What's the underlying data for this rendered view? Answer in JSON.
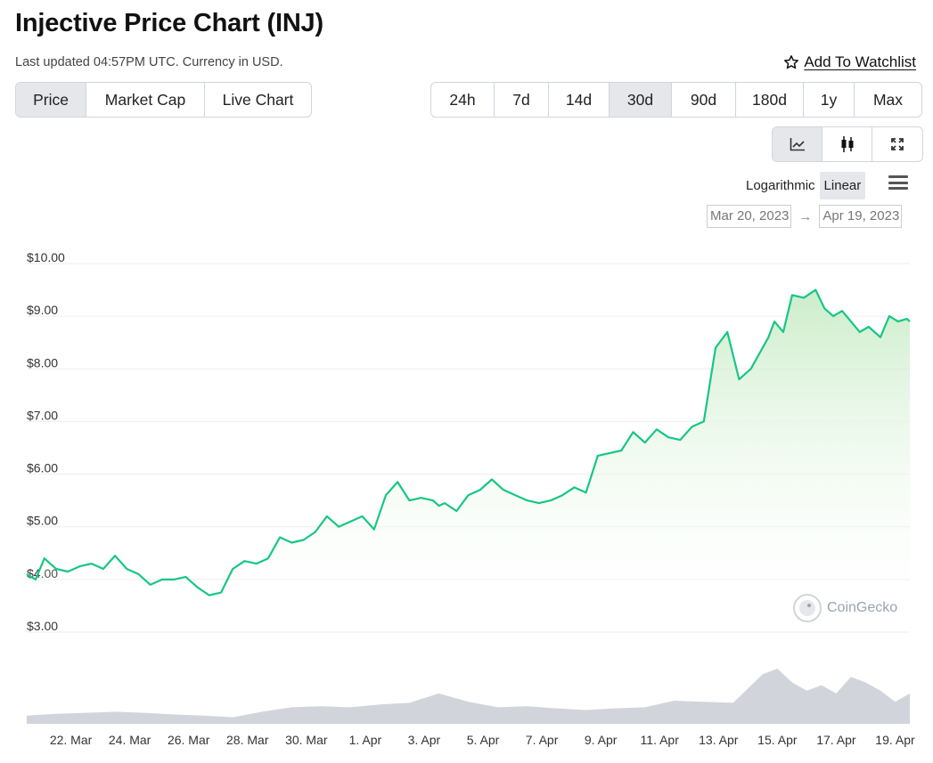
{
  "header": {
    "title": "Injective Price Chart (INJ)",
    "subtitle": "Last updated 04:57PM UTC. Currency in USD.",
    "watchlist_label": "Add To Watchlist"
  },
  "tabs": [
    {
      "label": "Price",
      "active": true
    },
    {
      "label": "Market Cap",
      "active": false
    },
    {
      "label": "Live Chart",
      "active": false
    }
  ],
  "ranges": [
    {
      "label": "24h",
      "active": false
    },
    {
      "label": "7d",
      "active": false
    },
    {
      "label": "14d",
      "active": false
    },
    {
      "label": "30d",
      "active": true
    },
    {
      "label": "90d",
      "active": false
    },
    {
      "label": "180d",
      "active": false
    },
    {
      "label": "1y",
      "active": false
    },
    {
      "label": "Max",
      "active": false
    }
  ],
  "chart_tools": [
    {
      "icon": "line-chart-icon",
      "active": true
    },
    {
      "icon": "candlestick-icon",
      "active": false
    },
    {
      "icon": "fullscreen-icon",
      "active": false
    }
  ],
  "scale": {
    "logarithmic_label": "Logarithmic",
    "linear_label": "Linear",
    "active": "Linear"
  },
  "date_range": {
    "from": "Mar 20, 2023",
    "to": "Apr 19, 2023",
    "arrow": "→"
  },
  "brand": {
    "name": "CoinGecko"
  },
  "colors": {
    "line": "#16c784",
    "area_top": "#c9ecc7",
    "volume": "#d1d5db"
  },
  "chart_data": {
    "type": "area",
    "y_ticks": [
      "$3.00",
      "$4.00",
      "$5.00",
      "$6.00",
      "$7.00",
      "$8.00",
      "$9.00",
      "$10.00"
    ],
    "ylim": [
      3,
      10
    ],
    "x_ticks": [
      "22. Mar",
      "24. Mar",
      "26. Mar",
      "28. Mar",
      "30. Mar",
      "1. Apr",
      "3. Apr",
      "5. Apr",
      "7. Apr",
      "9. Apr",
      "11. Apr",
      "13. Apr",
      "15. Apr",
      "17. Apr",
      "19. Apr"
    ],
    "xlim": [
      0,
      30
    ],
    "x_ticks_pos": [
      1.5,
      3.5,
      5.5,
      7.5,
      9.5,
      11.5,
      13.5,
      15.5,
      17.5,
      19.5,
      21.5,
      23.5,
      25.5,
      27.5,
      29.5
    ],
    "series": [
      {
        "x": [
          0,
          0.3,
          0.6,
          1.0,
          1.4,
          1.8,
          2.2,
          2.6,
          3.0,
          3.4,
          3.8,
          4.2,
          4.6,
          5.0,
          5.4,
          5.8,
          6.2,
          6.6,
          7.0,
          7.4,
          7.8,
          8.2,
          8.6,
          9.0,
          9.4,
          9.8,
          10.2,
          10.6,
          11.0,
          11.4,
          11.8,
          12.2,
          12.6,
          13.0,
          13.4,
          13.8,
          14.0,
          14.2,
          14.6,
          15.0,
          15.4,
          15.8,
          16.2,
          16.6,
          17.0,
          17.4,
          17.8,
          18.2,
          18.6,
          19.0,
          19.4,
          19.8,
          20.2,
          20.6,
          21.0,
          21.4,
          21.8,
          22.2,
          22.6,
          23.0,
          23.4,
          23.8,
          24.2,
          24.6,
          24.9,
          25.2,
          25.4,
          25.7,
          26.0,
          26.4,
          26.8,
          27.1,
          27.4,
          27.7,
          28.0,
          28.3,
          28.6,
          29.0,
          29.3,
          29.6,
          29.9,
          30.0
        ],
        "y": [
          4.1,
          4.0,
          4.4,
          4.2,
          4.15,
          4.25,
          4.3,
          4.2,
          4.45,
          4.2,
          4.1,
          3.9,
          4.0,
          4.0,
          4.05,
          3.85,
          3.7,
          3.75,
          4.2,
          4.35,
          4.3,
          4.4,
          4.8,
          4.7,
          4.75,
          4.9,
          5.2,
          5.0,
          5.1,
          5.2,
          4.95,
          5.6,
          5.85,
          5.5,
          5.55,
          5.5,
          5.4,
          5.45,
          5.3,
          5.6,
          5.7,
          5.9,
          5.7,
          5.6,
          5.5,
          5.45,
          5.5,
          5.6,
          5.75,
          5.65,
          6.35,
          6.4,
          6.45,
          6.8,
          6.6,
          6.85,
          6.7,
          6.65,
          6.9,
          7.0,
          8.4,
          8.7,
          7.8,
          8.0,
          8.3,
          8.6,
          8.9,
          8.7,
          9.4,
          9.35,
          9.5,
          9.15,
          9.0,
          9.1,
          8.9,
          8.7,
          8.8,
          8.6,
          9.0,
          8.9,
          8.95,
          8.9
        ]
      }
    ],
    "volume": {
      "x": [
        0,
        1,
        2,
        3,
        4,
        5,
        6,
        7,
        8,
        9,
        10,
        11,
        12,
        13,
        14,
        15,
        16,
        17,
        18,
        19,
        20,
        21,
        22,
        23,
        24,
        25,
        25.5,
        26,
        26.5,
        27,
        27.5,
        28,
        28.5,
        29,
        29.5,
        30
      ],
      "relative": [
        0.15,
        0.18,
        0.2,
        0.22,
        0.2,
        0.17,
        0.15,
        0.12,
        0.22,
        0.3,
        0.32,
        0.3,
        0.35,
        0.38,
        0.55,
        0.4,
        0.3,
        0.32,
        0.28,
        0.25,
        0.28,
        0.3,
        0.42,
        0.4,
        0.38,
        0.9,
        1.0,
        0.75,
        0.6,
        0.7,
        0.55,
        0.85,
        0.75,
        0.6,
        0.4,
        0.55
      ]
    }
  }
}
